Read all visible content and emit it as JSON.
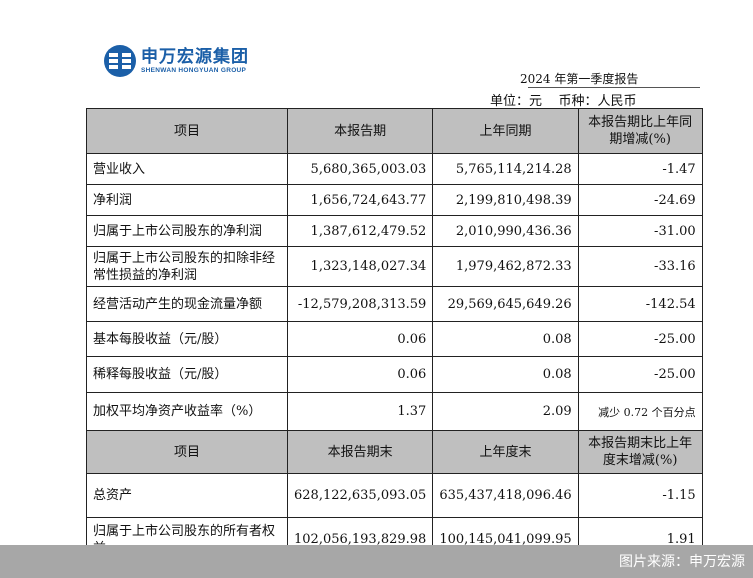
{
  "logo": {
    "cn": "申万宏源集团",
    "en": "SHENWAN HONGYUAN GROUP",
    "brand_color": "#1b5fa8"
  },
  "report_title": "2024 年第一季度报告",
  "unit": {
    "unit_label": "单位：元",
    "currency_label": "币种：人民币"
  },
  "table1": {
    "headers": [
      "项目",
      "本报告期",
      "上年同期",
      "本报告期比上年同期增减(%)"
    ],
    "rows": [
      [
        "营业收入",
        "5,680,365,003.03",
        "5,765,114,214.28",
        "-1.47"
      ],
      [
        "净利润",
        "1,656,724,643.77",
        "2,199,810,498.39",
        "-24.69"
      ],
      [
        "归属于上市公司股东的净利润",
        "1,387,612,479.52",
        "2,010,990,436.36",
        "-31.00"
      ],
      [
        "归属于上市公司股东的扣除非经常性损益的净利润",
        "1,323,148,027.34",
        "1,979,462,872.33",
        "-33.16"
      ],
      [
        "经营活动产生的现金流量净额",
        "-12,579,208,313.59",
        "29,569,645,649.26",
        "-142.54"
      ],
      [
        "基本每股收益（元/股）",
        "0.06",
        "0.08",
        "-25.00"
      ],
      [
        "稀释每股收益（元/股）",
        "0.06",
        "0.08",
        "-25.00"
      ],
      [
        "加权平均净资产收益率（%）",
        "1.37",
        "2.09",
        "减少 0.72 个百分点"
      ]
    ]
  },
  "table2": {
    "headers": [
      "项目",
      "本报告期末",
      "上年度末",
      "本报告期末比上年度末增减(%)"
    ],
    "rows": [
      [
        "总资产",
        "628,122,635,093.05",
        "635,437,418,096.46",
        "-1.15"
      ],
      [
        "归属于上市公司股东的所有者权益",
        "102,056,193,829.98",
        "100,145,041,099.95",
        "1.91"
      ]
    ]
  },
  "footer": {
    "source": "图片来源：申万宏源"
  }
}
